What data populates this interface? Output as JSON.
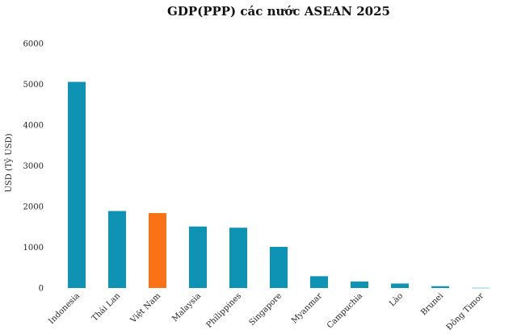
{
  "chart_data": {
    "type": "bar",
    "title": "GDP(PPP) các nước ASEAN 2025",
    "xlabel": "",
    "ylabel": "USD (Tỷ USD)",
    "ylim": [
      0,
      6000
    ],
    "yticks": [
      0,
      1000,
      2000,
      3000,
      4000,
      5000,
      6000
    ],
    "categories": [
      "Indonesia",
      "Thái Lan",
      "Việt Nam",
      "Malaysia",
      "Philippines",
      "Singapore",
      "Myanmar",
      "Campuchia",
      "Lào",
      "Brunei",
      "Đông Timor"
    ],
    "values": [
      5060,
      1890,
      1840,
      1510,
      1480,
      1010,
      290,
      160,
      110,
      45,
      8
    ],
    "highlight_category": "Việt Nam",
    "grid": false,
    "colors": {
      "default": "#0e93b5",
      "highlight": "#f97316",
      "text": "#222222"
    }
  }
}
